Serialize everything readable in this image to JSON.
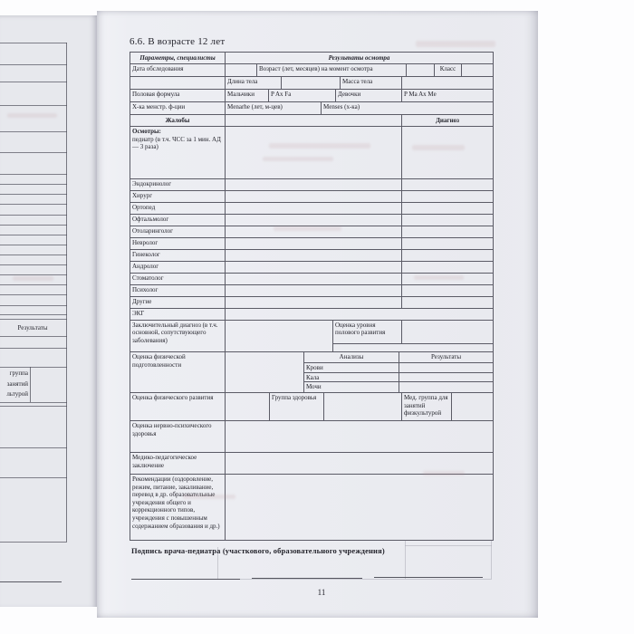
{
  "page": {
    "title": "6.6. В возрасте 12 лет",
    "number": "11",
    "signature_caption": "Подпись врача-педиатра (участкового, образовательного учреждения)"
  },
  "table": {
    "headers": {
      "parameters": "Параметры, специалисты",
      "results": "Результаты осмотра"
    },
    "exam_date": {
      "label": "Дата обследования",
      "age": "Возраст (лет, месяцев) на момент осмотра",
      "klass": "Класс"
    },
    "anthropometry": {
      "length": "Длина тела",
      "mass": "Масса тела"
    },
    "sex_formula": {
      "label": "Половая формула",
      "boys": "Мальчики",
      "boys_formula": "P Ax Fa",
      "girls": "Девочки",
      "girls_formula": "P Ma Ax Me"
    },
    "menstrual": {
      "label": "Х-ка менстр. ф-ции",
      "menarche": "Menarhe (лет, м-цев)",
      "menses": "Menses (х-ка)"
    },
    "complaints_header": "Жалобы",
    "diagnosis_header": "Диагноз",
    "exams": {
      "title": "Осмотры:",
      "subtitle": "педиатр (в т.ч. ЧСС за 1 мин. АД — 3 раза)"
    },
    "specialists": [
      "Эндокринолог",
      "Хирург",
      "Ортопед",
      "Офтальмолог",
      "Отоларинголог",
      "Невролог",
      "Гинеколог",
      "Андролог",
      "Стоматолог",
      "Психолог",
      "Другие"
    ],
    "ecg": "ЭКГ",
    "final_diagnosis": {
      "label": "Заключительный диагноз (в т.ч. основной, сопутствующего заболевания)",
      "puberty": "Оценка уровня полового развития"
    },
    "fitness": {
      "label": "Оценка физической подготовленности",
      "analyses": "Анализы",
      "results": "Результаты",
      "rows": [
        "Крови",
        "Кала",
        "Мочи"
      ]
    },
    "physical": {
      "label": "Оценка физического развития",
      "health_group": "Группа здоровья",
      "med_group": "Мед. группа для занятий физкультурой"
    },
    "neuro_label": "Оценка нервно-психического здоровья",
    "pedagogical_label": "Медико-педагогическое заключение",
    "recommendations_label": "Рекомендации (оздоровление, режим, питание, закаливание, перевод в др. образовательные учреждения общего и коррекционного типов, учреждения с повышенным содержанием образования и др.)"
  },
  "left_page": {
    "results_fragment": "Результаты",
    "med_group_fragment": [
      "группа",
      "занятий",
      "льтурой"
    ]
  }
}
